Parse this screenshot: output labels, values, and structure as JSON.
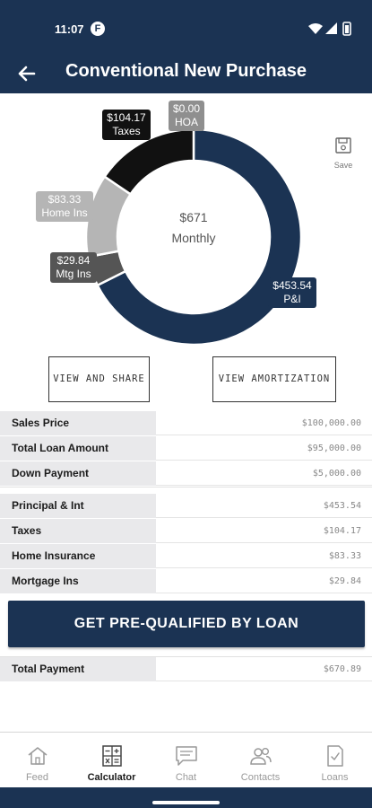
{
  "status_bar": {
    "time": "11:07",
    "app_badge": "F"
  },
  "header": {
    "title": "Conventional New Purchase"
  },
  "colors": {
    "navy": "#1b3353",
    "black": "#111111",
    "gray_light": "#b5b5b5",
    "gray_mid": "#8f8f8f",
    "gray_dark": "#555555"
  },
  "chart_data": {
    "type": "pie",
    "center": {
      "amount": "$671",
      "caption": "Monthly"
    },
    "slices": [
      {
        "name": "P&I",
        "value": 453.54,
        "label": "$453.54",
        "color": "#1b3353"
      },
      {
        "name": "Mtg Ins",
        "value": 29.84,
        "label": "$29.84",
        "color": "#555555"
      },
      {
        "name": "Home Ins",
        "value": 83.33,
        "label": "$83.33",
        "color": "#b5b5b5"
      },
      {
        "name": "Taxes",
        "value": 104.17,
        "label": "$104.17",
        "color": "#111111"
      },
      {
        "name": "HOA",
        "value": 0,
        "label": "$0.00",
        "color": "#8f8f8f"
      }
    ]
  },
  "save": {
    "label": "Save"
  },
  "buttons": {
    "view_share": "VIEW AND SHARE",
    "view_amortization": "VIEW AMORTIZATION",
    "cta": "GET PRE-QUALIFIED BY LOAN"
  },
  "loan_rows": [
    {
      "label": "Sales Price",
      "value": "$100,000.00"
    },
    {
      "label": "Total Loan Amount",
      "value": "$95,000.00"
    },
    {
      "label": "Down Payment",
      "value": "$5,000.00"
    }
  ],
  "payment_rows": [
    {
      "label": "Principal & Int",
      "value": "$453.54"
    },
    {
      "label": "Taxes",
      "value": "$104.17"
    },
    {
      "label": "Home Insurance",
      "value": "$83.33"
    },
    {
      "label": "Mortgage Ins",
      "value": "$29.84"
    }
  ],
  "total_row": {
    "label": "Total Payment",
    "value": "$670.89"
  },
  "nav": [
    {
      "label": "Feed",
      "icon": "home-icon"
    },
    {
      "label": "Calculator",
      "icon": "calculator-icon",
      "active": true
    },
    {
      "label": "Chat",
      "icon": "chat-icon"
    },
    {
      "label": "Contacts",
      "icon": "contacts-icon"
    },
    {
      "label": "Loans",
      "icon": "loans-icon"
    }
  ]
}
